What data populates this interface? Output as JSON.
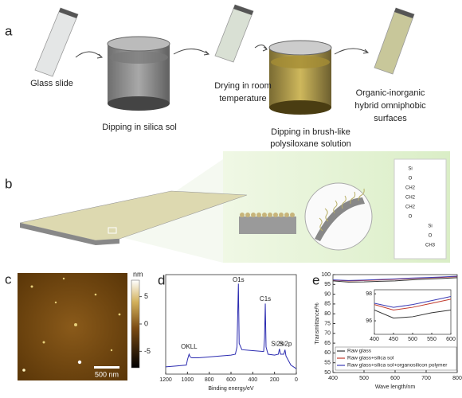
{
  "panel_labels": [
    "a",
    "b",
    "c",
    "d",
    "e"
  ],
  "steps": [
    {
      "lines": [
        "Glass slide"
      ]
    },
    {
      "lines": [
        "Dipping in silica sol"
      ]
    },
    {
      "lines": [
        "Drying in room",
        "temperature"
      ]
    },
    {
      "lines": [
        "Dipping in brush-like",
        "polysiloxane solution"
      ]
    },
    {
      "lines": [
        "Organic-inorganic",
        "hybrid omniphobic",
        "surfaces"
      ]
    }
  ],
  "structure_labels": [
    "Si",
    "O",
    "CH2",
    "CH2",
    "CH2",
    "O",
    "Si",
    "O",
    "CH3"
  ],
  "afm": {
    "scale_bar": "500 nm",
    "colorbar": {
      "unit": "nm",
      "lim": [
        -8,
        8
      ],
      "ticks": [
        5,
        0,
        -5
      ]
    }
  },
  "chart_data": [
    {
      "type": "line",
      "xlabel": "Binding energy/eV",
      "x": [
        1200,
        1100,
        1010,
        1000,
        985,
        975,
        960,
        900,
        800,
        700,
        600,
        560,
        545,
        532,
        525,
        500,
        400,
        300,
        292,
        285,
        278,
        260,
        200,
        165,
        155,
        145,
        115,
        104,
        95,
        50,
        0
      ],
      "series": [
        {
          "name": "spectrum",
          "color": "#2b2bb0",
          "values": [
            8,
            9,
            10,
            16,
            22,
            19,
            18,
            18,
            19,
            20,
            21,
            22,
            30,
            100,
            34,
            27,
            26,
            25,
            40,
            78,
            30,
            22,
            21,
            22,
            28,
            22,
            22,
            27,
            20,
            10,
            6
          ]
        }
      ],
      "xlim": [
        1200,
        0
      ],
      "xticks": [
        1200,
        1000,
        800,
        600,
        400,
        200,
        0
      ],
      "ylim": [
        0,
        110
      ],
      "annotations": [
        {
          "text": "OKLL",
          "x": 985,
          "y": 30
        },
        {
          "text": "O1s",
          "x": 532,
          "y": 104
        },
        {
          "text": "C1s",
          "x": 285,
          "y": 83
        },
        {
          "text": "Si2s",
          "x": 175,
          "y": 33
        },
        {
          "text": "Si2p",
          "x": 100,
          "y": 33
        }
      ]
    },
    {
      "type": "line",
      "xlabel": "Wave length/nm",
      "ylabel": "Transmittance/%",
      "x": [
        400,
        450,
        500,
        550,
        600,
        650,
        700,
        750,
        800
      ],
      "series": [
        {
          "name": "Raw glass",
          "color": "#333333",
          "values": [
            96.8,
            96.2,
            96.3,
            96.6,
            96.8,
            97.3,
            97.7,
            98.0,
            98.4
          ]
        },
        {
          "name": "Raw glass+silica sol",
          "color": "#c0392b",
          "values": [
            97.2,
            96.8,
            97.0,
            97.3,
            97.6,
            98.0,
            98.3,
            98.6,
            99.0
          ]
        },
        {
          "name": "Raw glass+silica sol+organosilicon polymer",
          "color": "#3b3bb5",
          "values": [
            97.3,
            97.0,
            97.2,
            97.5,
            97.8,
            98.2,
            98.5,
            98.8,
            99.2
          ]
        }
      ],
      "xlim": [
        400,
        800
      ],
      "xticks": [
        400,
        500,
        600,
        700,
        800
      ],
      "ylim": [
        50,
        100
      ],
      "yticks": [
        50,
        55,
        60,
        65,
        70,
        75,
        80,
        85,
        90,
        95,
        100
      ],
      "legend": "lower left",
      "inset": {
        "xlim": [
          400,
          600
        ],
        "ylim": [
          95,
          98.3
        ],
        "xticks": [
          400,
          450,
          500,
          550,
          600
        ],
        "yticks": [
          96,
          98
        ]
      }
    }
  ]
}
